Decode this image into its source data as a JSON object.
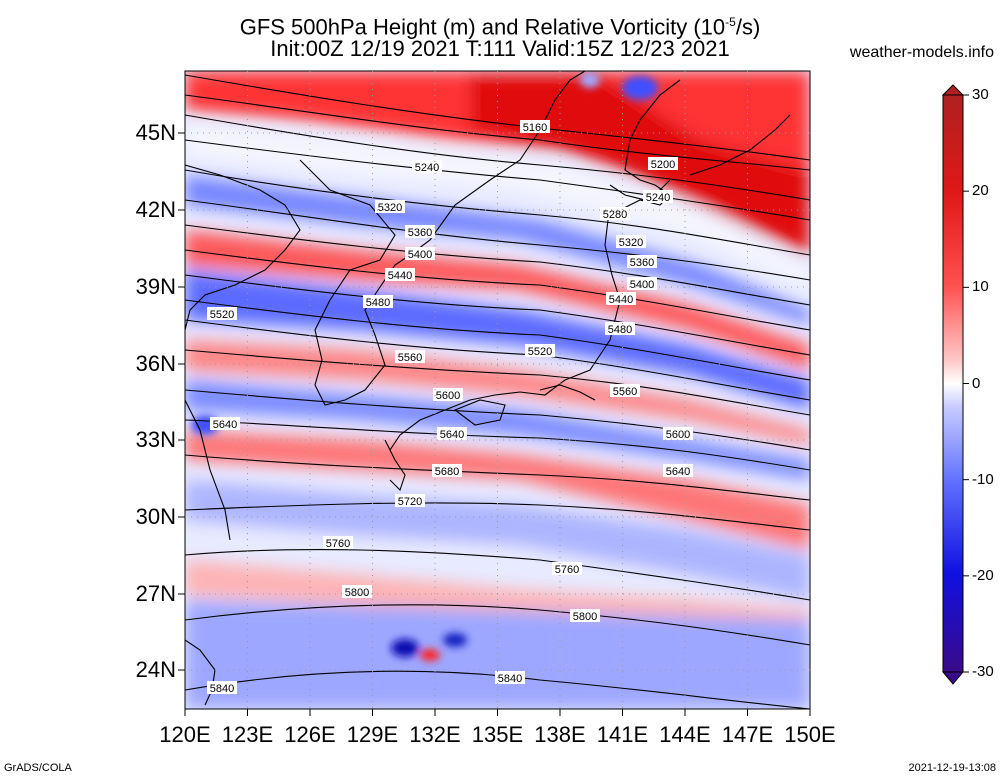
{
  "title_line1": "GFS 500hPa Height (m) and Relative Vorticity (10",
  "title_exp": "-5",
  "title_line1_end": "/s)",
  "title_line2": "Init:00Z 12/19 2021 T:111 Valid:15Z 12/23 2021",
  "site": "weather-models.info",
  "footer_left": "GrADS/COLA",
  "footer_right": "2021-12-19-13:08",
  "lat_ticks": [
    "45N",
    "42N",
    "39N",
    "36N",
    "33N",
    "30N",
    "27N",
    "24N"
  ],
  "lon_ticks": [
    "120E",
    "123E",
    "126E",
    "129E",
    "132E",
    "135E",
    "138E",
    "141E",
    "144E",
    "147E",
    "150E"
  ],
  "colorbar": {
    "labels": [
      "30",
      "20",
      "10",
      "0",
      "-10",
      "-20",
      "-30"
    ],
    "colors_top_to_bottom": [
      "#b32020",
      "#e02020",
      "#ff2020",
      "#ff7a7a",
      "#ffc0c0",
      "#ffffff",
      "#c0c8ff",
      "#7a8aff",
      "#2030ff",
      "#1010b0",
      "#3a0a8a"
    ]
  },
  "contour_labels": [
    "5160",
    "5200",
    "5240",
    "5240",
    "5280",
    "5320",
    "5320",
    "5360",
    "5360",
    "5400",
    "5400",
    "5440",
    "5440",
    "5480",
    "5480",
    "5520",
    "5520",
    "5560",
    "5560",
    "5600",
    "5600",
    "5640",
    "5640",
    "5640",
    "5680",
    "5720",
    "5760",
    "5760",
    "5800",
    "5800",
    "5840",
    "5840"
  ],
  "map_colors": {
    "positive": "#ff3030",
    "negative": "#6070ff",
    "neutral": "#f4f4ff"
  }
}
